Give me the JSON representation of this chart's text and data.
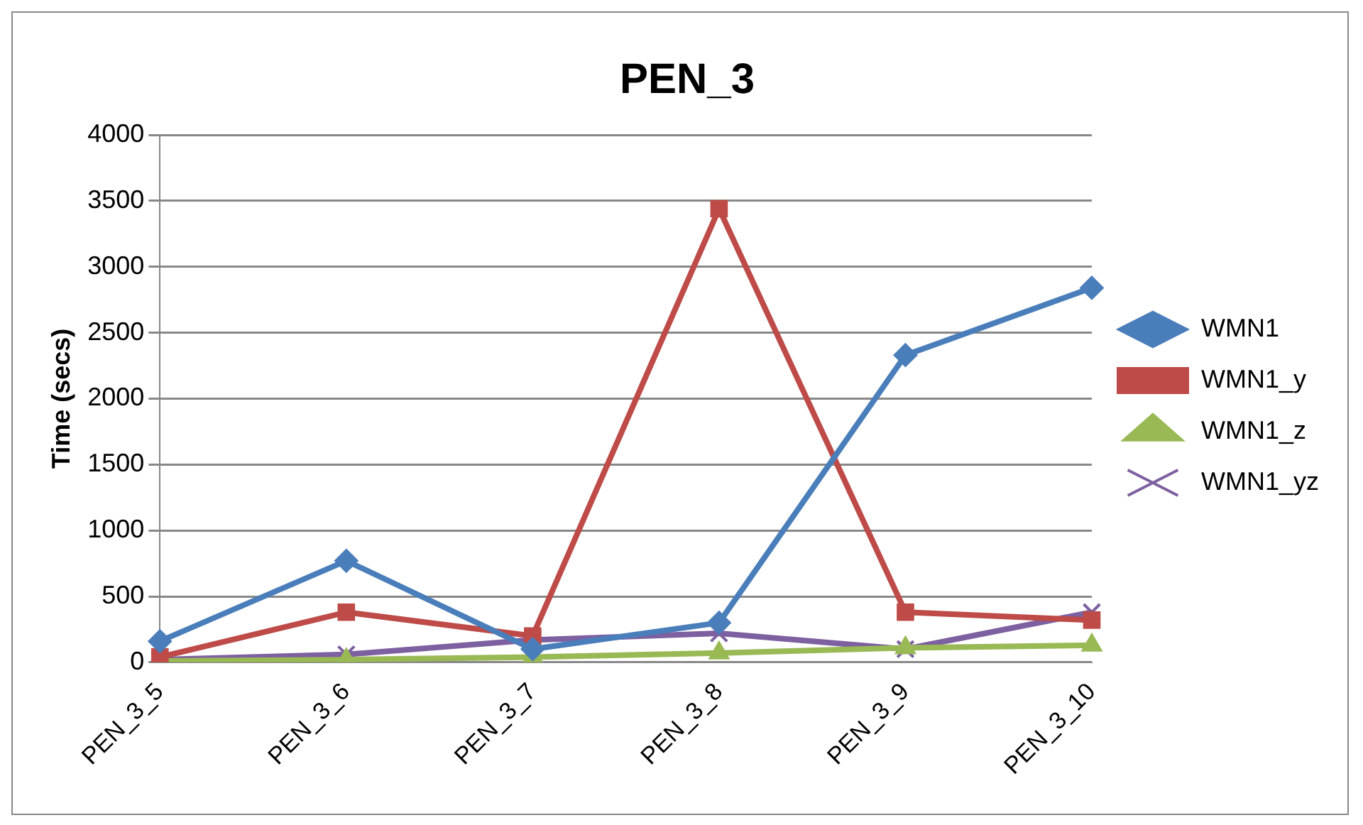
{
  "chart_data": {
    "type": "line",
    "title": "PEN_3",
    "ylabel": "Time (secs)",
    "categories": [
      "PEN_3_5",
      "PEN_3_6",
      "PEN_3_7",
      "PEN_3_8",
      "PEN_3_9",
      "PEN_3_10"
    ],
    "series": [
      {
        "name": "WMN1",
        "color": "#4a7ebb",
        "marker": "diamond",
        "values": [
          160,
          770,
          100,
          300,
          2330,
          2840
        ]
      },
      {
        "name": "WMN1_y",
        "color": "#be4b48",
        "marker": "square",
        "values": [
          40,
          380,
          200,
          3440,
          380,
          320
        ]
      },
      {
        "name": "WMN1_z",
        "color": "#98b954",
        "marker": "triangle",
        "values": [
          10,
          20,
          40,
          70,
          110,
          130
        ]
      },
      {
        "name": "WMN1_yz",
        "color": "#7d60a0",
        "marker": "cross",
        "values": [
          20,
          60,
          170,
          220,
          100,
          380
        ]
      }
    ],
    "ylim": [
      0,
      4000
    ],
    "yticks": [
      0,
      500,
      1000,
      1500,
      2000,
      2500,
      3000,
      3500,
      4000
    ],
    "grid": "y",
    "legend": "right"
  }
}
